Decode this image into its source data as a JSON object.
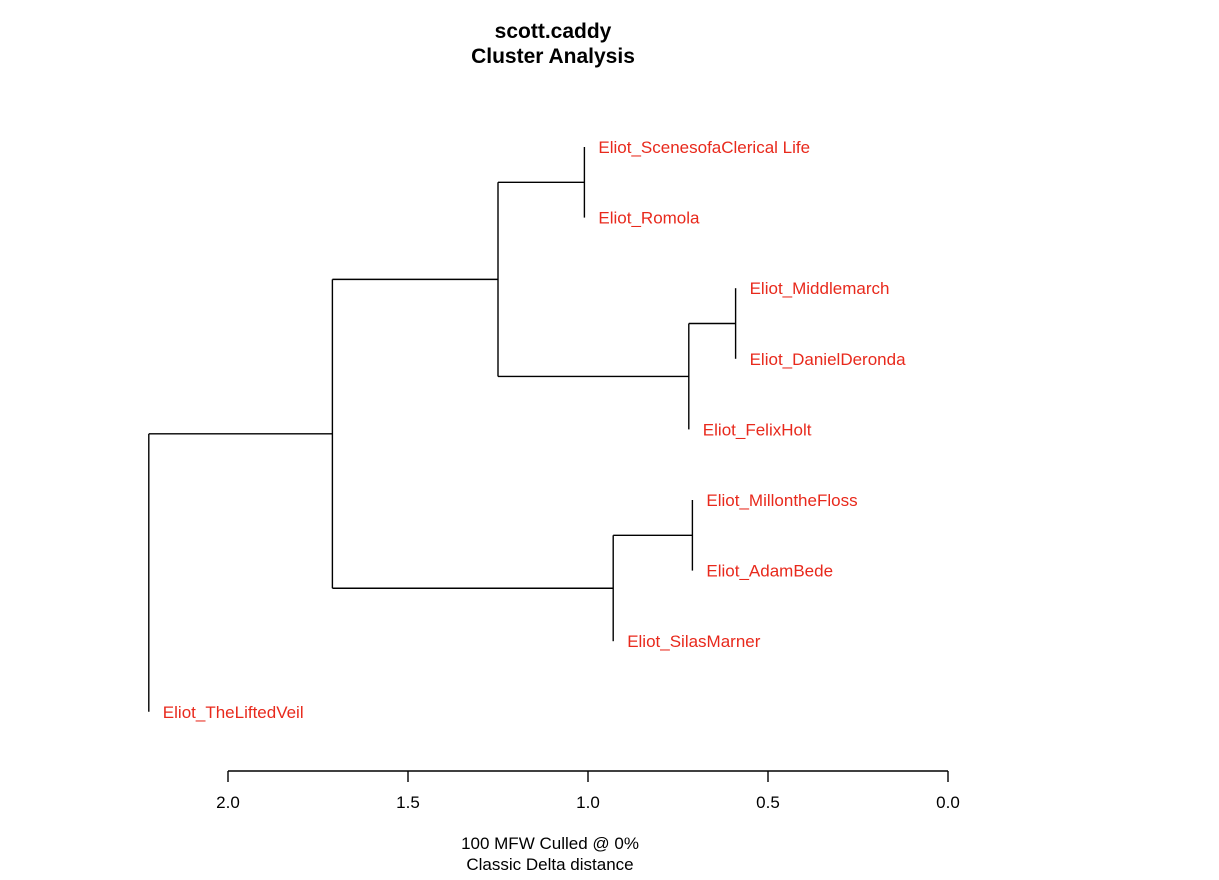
{
  "title": "scott.caddy",
  "subtitle": "Cluster Analysis",
  "footer": {
    "line1": "100 MFW  Culled @ 0%",
    "line2": "Classic Delta distance"
  },
  "colors": {
    "leaf": "#e8291c",
    "lines": "#000000"
  },
  "chart_data": {
    "type": "dendrogram",
    "orientation": "horizontal",
    "x_reversed": true,
    "xlim": [
      2.0,
      0.0
    ],
    "ticks": [
      {
        "value": 2.0,
        "label": "2.0"
      },
      {
        "value": 1.5,
        "label": "1.5"
      },
      {
        "value": 1.0,
        "label": "1.0"
      },
      {
        "value": 0.5,
        "label": "0.5"
      },
      {
        "value": 0.0,
        "label": "0.0"
      }
    ],
    "leaves": [
      "Eliot_ScenesofaClerical Life",
      "Eliot_Romola",
      "Eliot_Middlemarch",
      "Eliot_DanielDeronda",
      "Eliot_FelixHolt",
      "Eliot_MillontheFloss",
      "Eliot_AdamBede",
      "Eliot_SilasMarner",
      "Eliot_TheLiftedVeil"
    ],
    "merges": [
      {
        "id": "m1",
        "children": [
          "L0",
          "L1"
        ],
        "height": 1.01
      },
      {
        "id": "m2",
        "children": [
          "L2",
          "L3"
        ],
        "height": 0.59
      },
      {
        "id": "m3",
        "children": [
          "m2",
          "L4"
        ],
        "height": 0.72
      },
      {
        "id": "m4",
        "children": [
          "m1",
          "m3"
        ],
        "height": 1.25
      },
      {
        "id": "m5",
        "children": [
          "L5",
          "L6"
        ],
        "height": 0.71
      },
      {
        "id": "m6",
        "children": [
          "m5",
          "L7"
        ],
        "height": 0.93
      },
      {
        "id": "m7",
        "children": [
          "m4",
          "m6"
        ],
        "height": 1.71
      },
      {
        "id": "m8",
        "children": [
          "m7",
          "L8"
        ],
        "height": 2.22
      }
    ]
  }
}
